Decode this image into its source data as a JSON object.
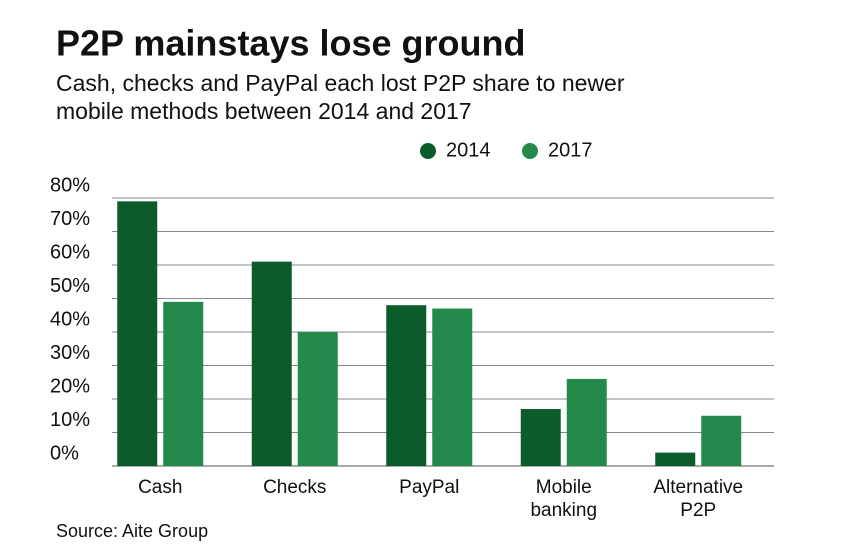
{
  "chart_data": {
    "type": "bar",
    "title": "P2P mainstays lose ground",
    "subtitle": [
      "Cash, checks and PayPal each lost P2P share to newer",
      "mobile methods between 2014 and 2017"
    ],
    "source": "Source: Aite Group",
    "categories": [
      "Cash",
      "Checks",
      "PayPal",
      "Mobile banking",
      "Alternative P2P"
    ],
    "series": [
      {
        "name": "2014",
        "color": "#0b5b2b",
        "values": [
          79,
          61,
          48,
          17,
          4
        ]
      },
      {
        "name": "2017",
        "color": "#238a4b",
        "values": [
          49,
          40,
          47,
          26,
          15
        ]
      }
    ],
    "ylim": [
      0,
      80
    ],
    "yticks": [
      {
        "value": 0,
        "label": "0%"
      },
      {
        "value": 10,
        "label": "10%"
      },
      {
        "value": 20,
        "label": "20%"
      },
      {
        "value": 30,
        "label": "30%"
      },
      {
        "value": 40,
        "label": "40%"
      },
      {
        "value": 50,
        "label": "50%"
      },
      {
        "value": 60,
        "label": "60%"
      },
      {
        "value": 70,
        "label": "70%"
      },
      {
        "value": 80,
        "label": "80%"
      }
    ],
    "grid": true
  }
}
